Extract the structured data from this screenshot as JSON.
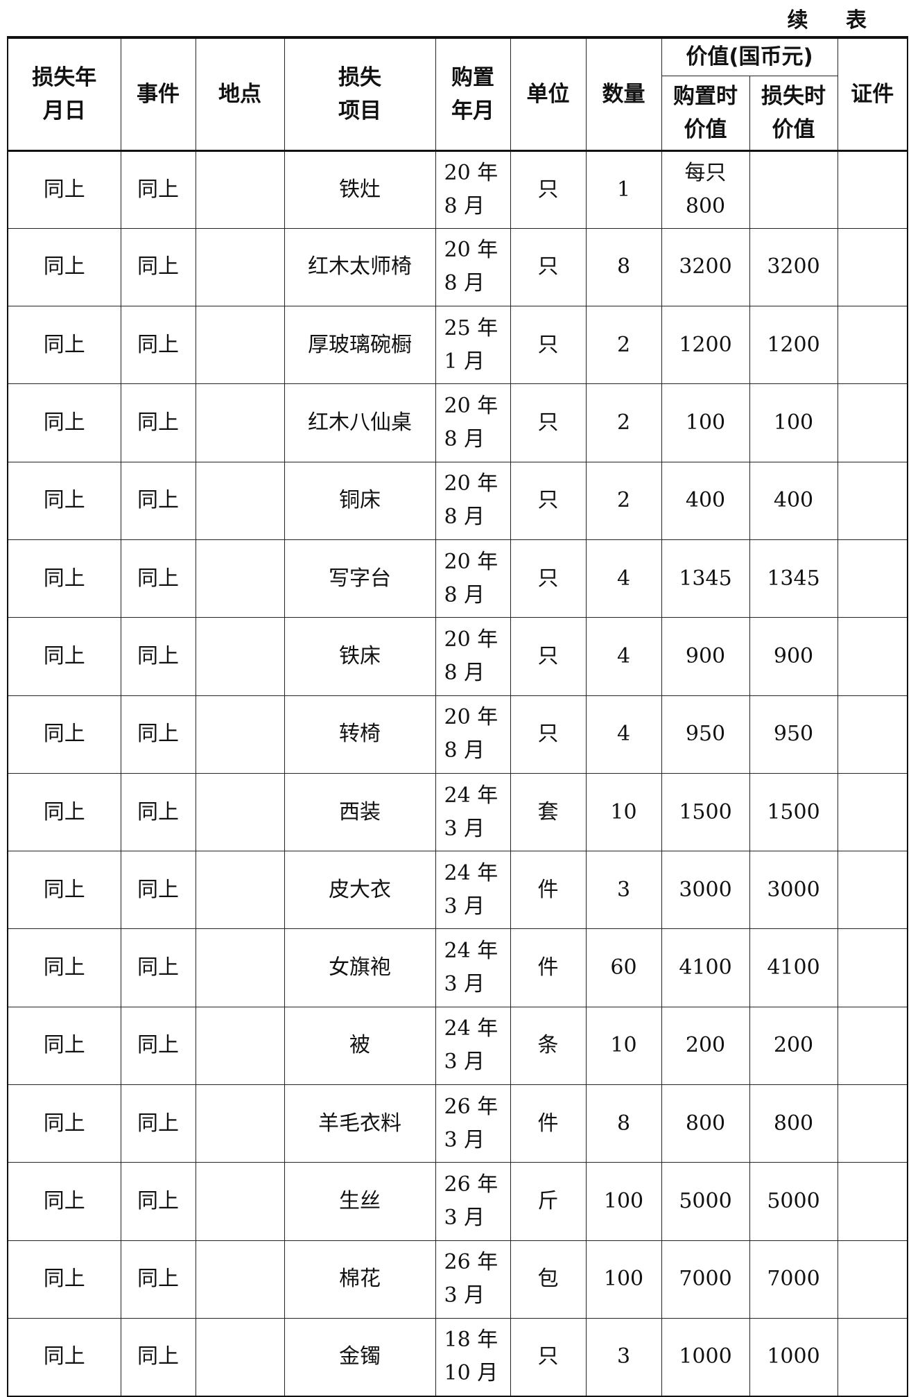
{
  "continued_label": "续 表",
  "headers": {
    "loss_date": "损失年月日",
    "event": "事件",
    "location": "地点",
    "item": "损失项目",
    "purchase_date": "购置年月",
    "unit": "单位",
    "quantity": "数量",
    "value_group": "价值(国币元)",
    "value_at_purchase": "购置时价值",
    "value_at_loss": "损失时价值",
    "certificate": "证件"
  },
  "rows": [
    {
      "loss_date": "同上",
      "event": "同上",
      "location": "",
      "item": "铁灶",
      "purchase_date": [
        "20 年",
        "8 月"
      ],
      "unit": "只",
      "quantity": "1",
      "value_at_purchase": "每只800",
      "value_at_loss": "",
      "certificate": ""
    },
    {
      "loss_date": "同上",
      "event": "同上",
      "location": "",
      "item": "红木太师椅",
      "purchase_date": [
        "20 年",
        "8 月"
      ],
      "unit": "只",
      "quantity": "8",
      "value_at_purchase": "3200",
      "value_at_loss": "3200",
      "certificate": ""
    },
    {
      "loss_date": "同上",
      "event": "同上",
      "location": "",
      "item": "厚玻璃碗橱",
      "purchase_date": [
        "25 年",
        "1 月"
      ],
      "unit": "只",
      "quantity": "2",
      "value_at_purchase": "1200",
      "value_at_loss": "1200",
      "certificate": ""
    },
    {
      "loss_date": "同上",
      "event": "同上",
      "location": "",
      "item": "红木八仙桌",
      "purchase_date": [
        "20 年",
        "8 月"
      ],
      "unit": "只",
      "quantity": "2",
      "value_at_purchase": "100",
      "value_at_loss": "100",
      "certificate": ""
    },
    {
      "loss_date": "同上",
      "event": "同上",
      "location": "",
      "item": "铜床",
      "purchase_date": [
        "20 年",
        "8 月"
      ],
      "unit": "只",
      "quantity": "2",
      "value_at_purchase": "400",
      "value_at_loss": "400",
      "certificate": ""
    },
    {
      "loss_date": "同上",
      "event": "同上",
      "location": "",
      "item": "写字台",
      "purchase_date": [
        "20 年",
        "8 月"
      ],
      "unit": "只",
      "quantity": "4",
      "value_at_purchase": "1345",
      "value_at_loss": "1345",
      "certificate": ""
    },
    {
      "loss_date": "同上",
      "event": "同上",
      "location": "",
      "item": "铁床",
      "purchase_date": [
        "20 年",
        "8 月"
      ],
      "unit": "只",
      "quantity": "4",
      "value_at_purchase": "900",
      "value_at_loss": "900",
      "certificate": ""
    },
    {
      "loss_date": "同上",
      "event": "同上",
      "location": "",
      "item": "转椅",
      "purchase_date": [
        "20 年",
        "8 月"
      ],
      "unit": "只",
      "quantity": "4",
      "value_at_purchase": "950",
      "value_at_loss": "950",
      "certificate": ""
    },
    {
      "loss_date": "同上",
      "event": "同上",
      "location": "",
      "item": "西装",
      "purchase_date": [
        "24 年",
        "3 月"
      ],
      "unit": "套",
      "quantity": "10",
      "value_at_purchase": "1500",
      "value_at_loss": "1500",
      "certificate": ""
    },
    {
      "loss_date": "同上",
      "event": "同上",
      "location": "",
      "item": "皮大衣",
      "purchase_date": [
        "24 年",
        "3 月"
      ],
      "unit": "件",
      "quantity": "3",
      "value_at_purchase": "3000",
      "value_at_loss": "3000",
      "certificate": ""
    },
    {
      "loss_date": "同上",
      "event": "同上",
      "location": "",
      "item": "女旗袍",
      "purchase_date": [
        "24 年",
        "3 月"
      ],
      "unit": "件",
      "quantity": "60",
      "value_at_purchase": "4100",
      "value_at_loss": "4100",
      "certificate": ""
    },
    {
      "loss_date": "同上",
      "event": "同上",
      "location": "",
      "item": "被",
      "purchase_date": [
        "24 年",
        "3 月"
      ],
      "unit": "条",
      "quantity": "10",
      "value_at_purchase": "200",
      "value_at_loss": "200",
      "certificate": ""
    },
    {
      "loss_date": "同上",
      "event": "同上",
      "location": "",
      "item": "羊毛衣料",
      "purchase_date": [
        "26 年",
        "3 月"
      ],
      "unit": "件",
      "quantity": "8",
      "value_at_purchase": "800",
      "value_at_loss": "800",
      "certificate": ""
    },
    {
      "loss_date": "同上",
      "event": "同上",
      "location": "",
      "item": "生丝",
      "purchase_date": [
        "26 年",
        "3 月"
      ],
      "unit": "斤",
      "quantity": "100",
      "value_at_purchase": "5000",
      "value_at_loss": "5000",
      "certificate": ""
    },
    {
      "loss_date": "同上",
      "event": "同上",
      "location": "",
      "item": "棉花",
      "purchase_date": [
        "26 年",
        "3 月"
      ],
      "unit": "包",
      "quantity": "100",
      "value_at_purchase": "7000",
      "value_at_loss": "7000",
      "certificate": ""
    },
    {
      "loss_date": "同上",
      "event": "同上",
      "location": "",
      "item": "金镯",
      "purchase_date": [
        "18 年",
        "10 月"
      ],
      "unit": "只",
      "quantity": "3",
      "value_at_purchase": "1000",
      "value_at_loss": "1000",
      "certificate": ""
    }
  ]
}
